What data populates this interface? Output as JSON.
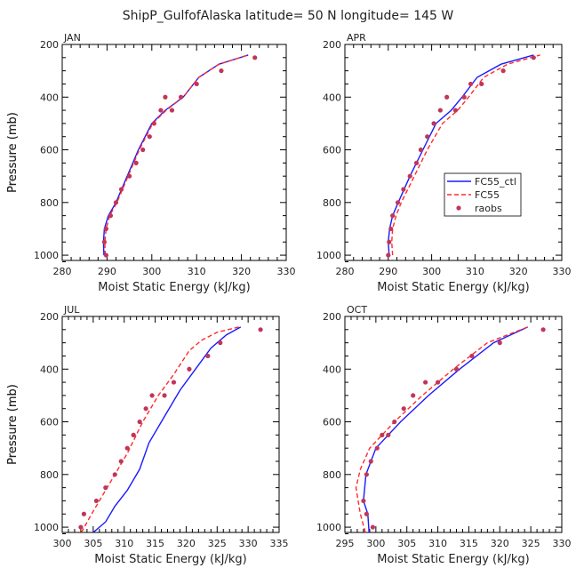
{
  "figure": {
    "title": "ShipP_GulfofAlaska  latitude= 50 N longitude= 145 W"
  },
  "legend": {
    "entries": [
      {
        "label": "FC55_ctl",
        "color": "#1a1aff",
        "style": "solid"
      },
      {
        "label": "FC55",
        "color": "#ff2a2a",
        "style": "dashed"
      },
      {
        "label": "raobs",
        "color": "#c0365a",
        "style": "dot"
      }
    ]
  },
  "chart_data": [
    {
      "type": "line",
      "panel": "JAN",
      "xlabel": "Moist Static Energy (kJ/kg)",
      "ylabel": "Pressure (mb)",
      "xlim": [
        280,
        330
      ],
      "ylim": [
        1020,
        200
      ],
      "xticks": [
        280,
        290,
        300,
        310,
        320,
        330
      ],
      "yticks": [
        200,
        400,
        600,
        800,
        1000
      ],
      "series": [
        {
          "name": "FC55_ctl",
          "x": [
            289.3,
            289.2,
            289.4,
            290.3,
            292,
            294.5,
            297,
            300,
            303,
            307,
            310.5,
            315,
            321.5
          ],
          "y": [
            1000,
            950,
            900,
            850,
            800,
            700,
            600,
            500,
            450,
            400,
            325,
            275,
            240
          ]
        },
        {
          "name": "FC55",
          "x": [
            289.6,
            289.5,
            289.8,
            290.6,
            292.2,
            294.7,
            297.2,
            300.2,
            303.2,
            307,
            310.5,
            315,
            321.5
          ],
          "y": [
            1000,
            950,
            900,
            850,
            800,
            700,
            600,
            500,
            450,
            400,
            325,
            275,
            240
          ]
        },
        {
          "name": "raobs",
          "x": [
            289.8,
            289.4,
            289.8,
            290.8,
            292,
            293.2,
            295,
            296.5,
            298,
            299.5,
            300.5,
            302,
            303,
            304.5,
            306.5,
            310,
            315.5,
            323
          ],
          "y": [
            1000,
            950,
            900,
            850,
            800,
            750,
            700,
            650,
            600,
            550,
            500,
            450,
            400,
            450,
            400,
            350,
            300,
            250
          ]
        }
      ]
    },
    {
      "type": "line",
      "panel": "APR",
      "xlabel": "Moist Static Energy (kJ/kg)",
      "ylabel": "Pressure (mb)",
      "xlim": [
        280,
        330
      ],
      "ylim": [
        1020,
        200
      ],
      "xticks": [
        280,
        290,
        300,
        310,
        320,
        330
      ],
      "yticks": [
        200,
        400,
        600,
        800,
        1000
      ],
      "series": [
        {
          "name": "FC55_ctl",
          "x": [
            290.2,
            290,
            290.3,
            291,
            292.3,
            295,
            298,
            301,
            304.5,
            307,
            310.5,
            316,
            323.5
          ],
          "y": [
            1000,
            950,
            900,
            850,
            800,
            700,
            600,
            500,
            450,
            400,
            325,
            275,
            240
          ]
        },
        {
          "name": "FC55",
          "x": [
            291,
            290.8,
            291,
            291.8,
            293,
            296,
            299,
            302.5,
            306,
            308.5,
            312,
            317.5,
            325
          ],
          "y": [
            1000,
            950,
            900,
            850,
            800,
            700,
            600,
            500,
            450,
            400,
            325,
            275,
            240
          ]
        },
        {
          "name": "raobs",
          "x": [
            290,
            290.2,
            290.6,
            291,
            292.2,
            293.5,
            295,
            296.5,
            297.5,
            299,
            300.5,
            302,
            303.5,
            305.5,
            307.5,
            309,
            311.5,
            316.5,
            323.5
          ],
          "y": [
            1000,
            950,
            900,
            850,
            800,
            750,
            700,
            650,
            600,
            550,
            500,
            450,
            400,
            450,
            400,
            350,
            350,
            300,
            250
          ]
        }
      ]
    },
    {
      "type": "line",
      "panel": "JUL",
      "xlabel": "Moist Static Energy (kJ/kg)",
      "ylabel": "Pressure (mb)",
      "xlim": [
        300,
        335
      ],
      "ylim": [
        1020,
        200
      ],
      "xticks": [
        300,
        305,
        310,
        315,
        320,
        325,
        330,
        335
      ],
      "yticks": [
        200,
        400,
        600,
        800,
        1000
      ],
      "series": [
        {
          "name": "FC55_ctl",
          "x": [
            305,
            307,
            308.5,
            310.5,
            312.5,
            314,
            316.5,
            319,
            321.5,
            324,
            326.5,
            328.8
          ],
          "y": [
            1020,
            980,
            920,
            860,
            780,
            680,
            580,
            480,
            400,
            320,
            270,
            240
          ]
        },
        {
          "name": "FC55",
          "x": [
            303.1,
            304.5,
            306,
            308,
            310.5,
            313,
            315.5,
            318,
            320.5,
            322.5,
            325,
            328.5
          ],
          "y": [
            1020,
            960,
            900,
            820,
            720,
            600,
            500,
            420,
            330,
            290,
            260,
            240
          ]
        },
        {
          "name": "raobs",
          "x": [
            303,
            303.5,
            305.5,
            307,
            308.5,
            309.5,
            310.5,
            311.5,
            312.5,
            313.5,
            314.5,
            316.5,
            318,
            320.5,
            323.5,
            325.5,
            332
          ],
          "y": [
            1000,
            950,
            900,
            850,
            800,
            750,
            700,
            650,
            600,
            550,
            500,
            500,
            450,
            400,
            350,
            300,
            250
          ]
        }
      ]
    },
    {
      "type": "line",
      "panel": "OCT",
      "xlabel": "Moist Static Energy (kJ/kg)",
      "ylabel": "Pressure (mb)",
      "xlim": [
        295,
        330
      ],
      "ylim": [
        1020,
        200
      ],
      "xticks": [
        295,
        300,
        305,
        310,
        315,
        320,
        325,
        330
      ],
      "yticks": [
        200,
        400,
        600,
        800,
        1000
      ],
      "series": [
        {
          "name": "FC55_ctl",
          "x": [
            298.9,
            298.7,
            298,
            298.4,
            300,
            304,
            308.5,
            313.5,
            319,
            324.5
          ],
          "y": [
            1020,
            950,
            900,
            800,
            700,
            600,
            500,
            400,
            300,
            240
          ]
        },
        {
          "name": "FC55",
          "x": [
            298.3,
            297.5,
            296.8,
            297.5,
            299,
            303,
            307.5,
            312.5,
            318,
            324.5
          ],
          "y": [
            1020,
            950,
            850,
            780,
            700,
            600,
            500,
            400,
            300,
            240
          ]
        },
        {
          "name": "raobs",
          "x": [
            299.5,
            298.5,
            298,
            298.5,
            299.2,
            300.2,
            301,
            302,
            303,
            304.5,
            306,
            308,
            310,
            313,
            315.5,
            320,
            327
          ],
          "y": [
            1000,
            950,
            900,
            800,
            750,
            700,
            650,
            650,
            600,
            550,
            500,
            450,
            450,
            400,
            350,
            300,
            250
          ]
        }
      ]
    }
  ]
}
